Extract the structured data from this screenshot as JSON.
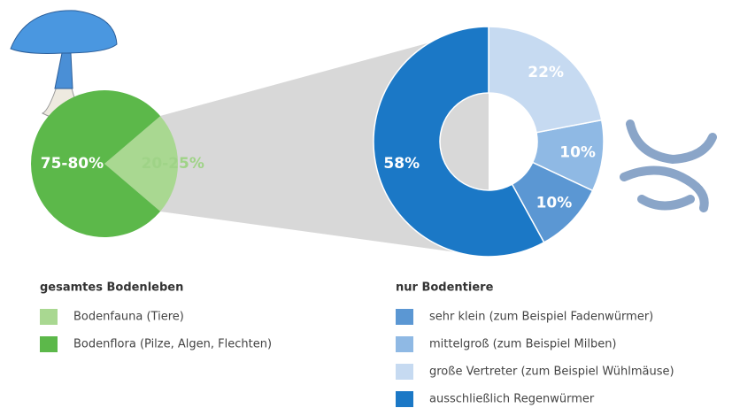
{
  "chart_data": [
    {
      "type": "pie",
      "title": "gesamtes Bodenleben",
      "categories": [
        "Bodenfauna (Tiere)",
        "Bodenflora (Pilze, Algen, Flechten)"
      ],
      "values": [
        22.5,
        77.5
      ],
      "value_labels": [
        "20-25%",
        "75-80%"
      ],
      "colors": [
        "#a9d891",
        "#5cb84a"
      ]
    },
    {
      "type": "donut",
      "title": "nur Bodentiere",
      "categories": [
        "sehr klein (zum Beispiel Fadenwürmer)",
        "mittelgroß (zum Beispiel Milben)",
        "große Vertreter (zum Beispiel Wühlmäuse)",
        "ausschließlich Regenwürmer"
      ],
      "values": [
        10,
        10,
        22,
        58
      ],
      "value_labels": [
        "10%",
        "10%",
        "22%",
        "58%"
      ],
      "colors": [
        "#5b97d3",
        "#8fb9e4",
        "#c6daf1",
        "#1b78c6"
      ]
    }
  ]
}
